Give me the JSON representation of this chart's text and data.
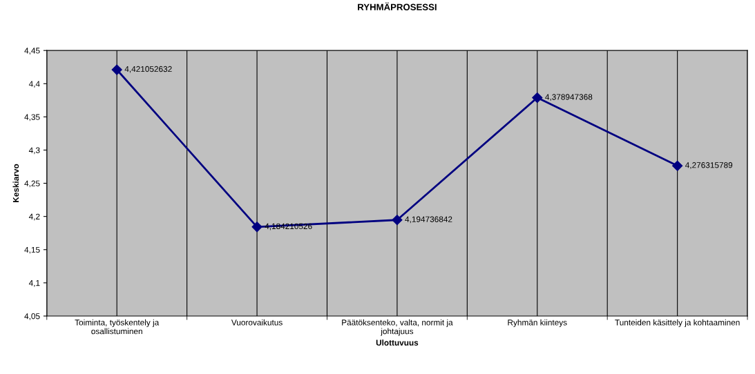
{
  "chart_data": {
    "type": "line",
    "title": "RYHMÄPROSESSI",
    "xlabel": "Ulottuvuus",
    "ylabel": "Keskiarvo",
    "categories": [
      "Toiminta, työskentely ja\nosallistuminen",
      "Vuorovaikutus",
      "Päätöksenteko, valta, normit ja\njohtajuus",
      "Ryhmän kiinteys",
      "Tunteiden käsittely ja kohtaaminen"
    ],
    "series": [
      {
        "color": "#000080",
        "values": [
          4.421052632,
          4.184210526,
          4.194736842,
          4.378947368,
          4.276315789
        ],
        "value_labels": [
          "4,421052632",
          "4,184210526",
          "4,194736842",
          "4,378947368",
          "4,276315789"
        ]
      }
    ],
    "ylim": [
      4.05,
      4.45
    ],
    "yticks": [
      {
        "value": 4.05,
        "label": "4,05"
      },
      {
        "value": 4.1,
        "label": "4,1"
      },
      {
        "value": 4.15,
        "label": "4,15"
      },
      {
        "value": 4.2,
        "label": "4,2"
      },
      {
        "value": 4.25,
        "label": "4,25"
      },
      {
        "value": 4.3,
        "label": "4,3"
      },
      {
        "value": 4.35,
        "label": "4,35"
      },
      {
        "value": 4.4,
        "label": "4,4"
      },
      {
        "value": 4.45,
        "label": "4,45"
      }
    ],
    "grid": "x",
    "legend": false,
    "marker": "diamond",
    "line_style": "solid"
  }
}
